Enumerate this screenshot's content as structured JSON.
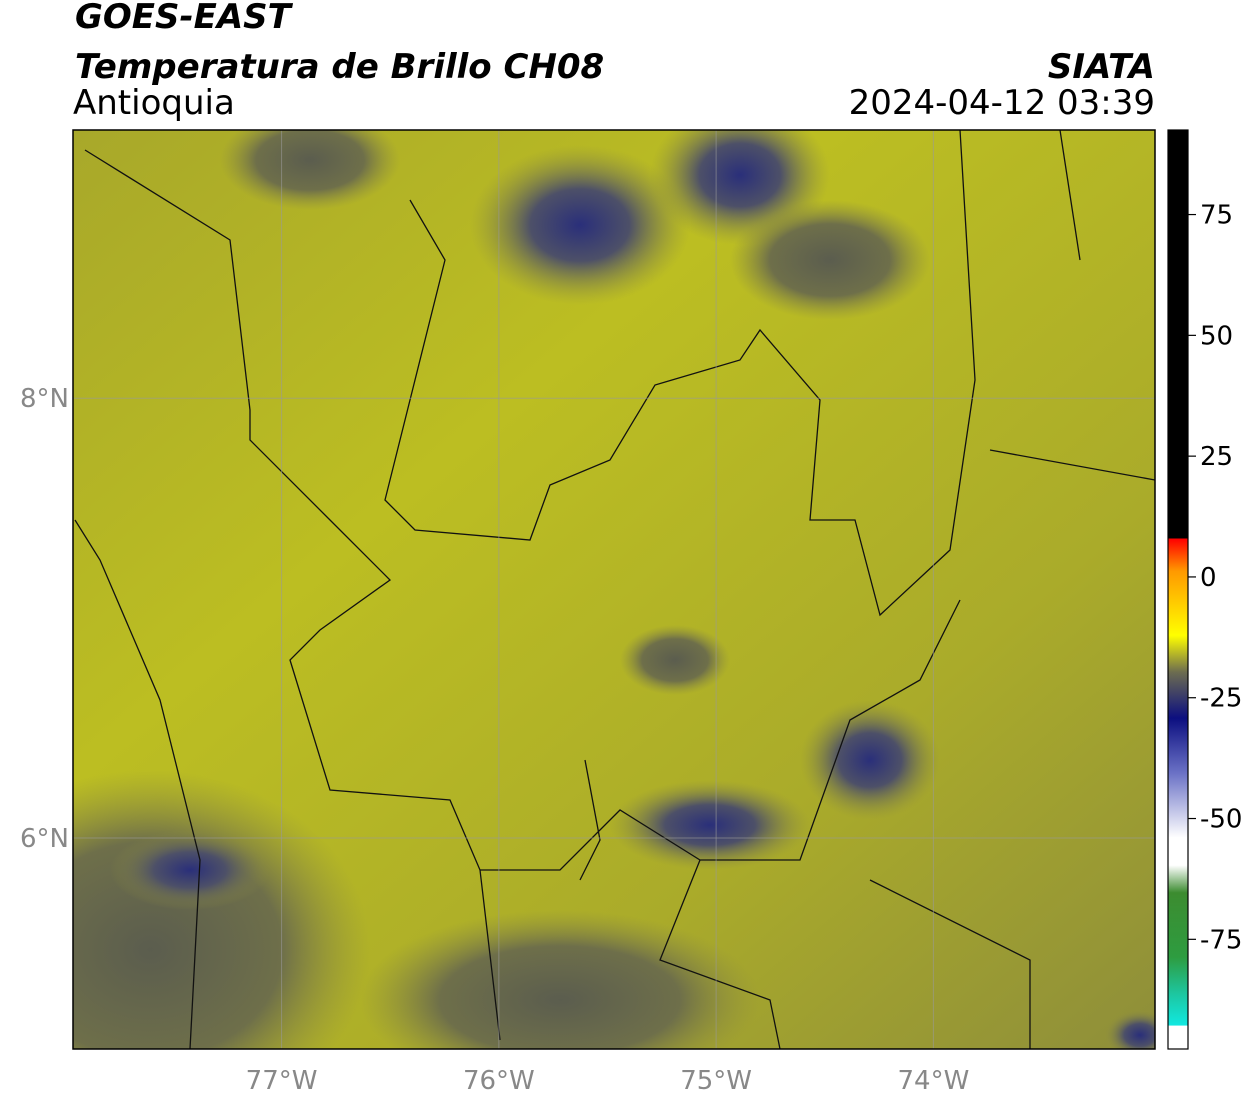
{
  "header": {
    "title": "GOES-EAST",
    "product": "Temperatura de Brillo CH08",
    "region": "Antioquia",
    "agency": "SIATA",
    "datetime": "2024-04-12 03:39"
  },
  "map": {
    "xlim": [
      -77.96,
      -72.98
    ],
    "ylim": [
      5.04,
      9.22
    ],
    "xticks": [
      {
        "value": -77,
        "label": "77°W"
      },
      {
        "value": -76,
        "label": "76°W"
      },
      {
        "value": -75,
        "label": "75°W"
      },
      {
        "value": -74,
        "label": "74°W"
      }
    ],
    "yticks": [
      {
        "value": 8,
        "label": "8°N"
      },
      {
        "value": 6,
        "label": "6°N"
      }
    ]
  },
  "colorbar": {
    "lim": [
      -97.7,
      92.5
    ],
    "ticks": [
      75,
      50,
      25,
      0,
      -25,
      -50,
      -75
    ]
  }
}
